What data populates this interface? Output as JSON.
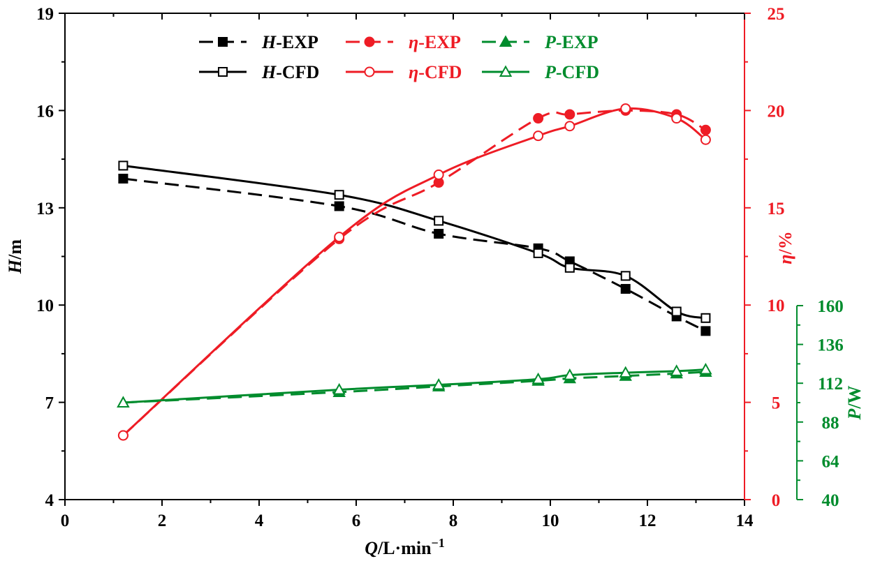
{
  "chart_data": {
    "type": "line",
    "x_axis": {
      "label_var": "Q",
      "label_unit": "/L·min",
      "label_exp": "−1",
      "range": [
        0,
        14
      ],
      "ticks": [
        "0",
        "2",
        "4",
        "6",
        "8",
        "10",
        "12",
        "14"
      ]
    },
    "y_axes": {
      "head": {
        "label_var": "H",
        "label_unit": "/m",
        "range": [
          4,
          19
        ],
        "ticks": [
          "4",
          "7",
          "10",
          "13",
          "16",
          "19"
        ],
        "color": "#000000"
      },
      "efficiency": {
        "label_var": "η",
        "label_unit": "/%",
        "range": [
          0,
          25
        ],
        "ticks": [
          "0",
          "5",
          "10",
          "15",
          "20",
          "25"
        ],
        "color": "#ee1c25"
      },
      "power": {
        "label_var": "P",
        "label_unit": "/W",
        "range": [
          40,
          160
        ],
        "ticks": [
          "40",
          "64",
          "88",
          "112",
          "136",
          "160"
        ],
        "color": "#008c2d"
      }
    },
    "series": [
      {
        "key": "h_exp",
        "prefix": "H",
        "suffix": "-EXP",
        "axis": "head",
        "style": "dashed",
        "marker": "square-filled",
        "color": "#000000",
        "x": [
          1.2,
          5.65,
          7.7,
          9.75,
          10.4,
          11.55,
          12.6,
          13.2
        ],
        "y": [
          13.9,
          13.05,
          12.2,
          11.75,
          11.35,
          10.5,
          9.65,
          9.2
        ]
      },
      {
        "key": "h_cfd",
        "prefix": "H",
        "suffix": "-CFD",
        "axis": "head",
        "style": "solid",
        "marker": "square-open",
        "color": "#000000",
        "x": [
          1.2,
          5.65,
          7.7,
          9.75,
          10.4,
          11.55,
          12.6,
          13.2
        ],
        "y": [
          14.3,
          13.4,
          12.6,
          11.6,
          11.15,
          10.9,
          9.8,
          9.6
        ]
      },
      {
        "key": "eta_exp",
        "prefix": "η",
        "suffix": "-EXP",
        "axis": "efficiency",
        "style": "dashed",
        "marker": "circle-filled",
        "color": "#ee1c25",
        "x": [
          1.2,
          5.65,
          7.7,
          9.75,
          10.4,
          11.55,
          12.6,
          13.2
        ],
        "y": [
          3.3,
          13.4,
          16.3,
          19.6,
          19.8,
          20.0,
          19.8,
          19.0
        ]
      },
      {
        "key": "eta_cfd",
        "prefix": "η",
        "suffix": "-CFD",
        "axis": "efficiency",
        "style": "solid",
        "marker": "circle-open",
        "color": "#ee1c25",
        "x": [
          1.2,
          5.65,
          7.7,
          9.75,
          10.4,
          11.55,
          12.6,
          13.2
        ],
        "y": [
          3.3,
          13.5,
          16.7,
          18.7,
          19.2,
          20.1,
          19.6,
          18.5
        ]
      },
      {
        "key": "p_exp",
        "prefix": "P",
        "suffix": "-EXP",
        "axis": "power",
        "style": "dashed",
        "marker": "triangle-filled",
        "color": "#008c2d",
        "x": [
          1.2,
          5.65,
          7.7,
          9.75,
          10.4,
          11.55,
          12.6,
          13.2
        ],
        "y": [
          100,
          106.5,
          110,
          113.5,
          115,
          116.5,
          118,
          119
        ]
      },
      {
        "key": "p_cfd",
        "prefix": "P",
        "suffix": "-CFD",
        "axis": "power",
        "style": "solid",
        "marker": "triangle-open",
        "color": "#008c2d",
        "x": [
          1.2,
          5.65,
          7.7,
          9.75,
          10.4,
          11.55,
          12.6,
          13.2
        ],
        "y": [
          100,
          108,
          111,
          114.5,
          117,
          118.5,
          119.5,
          120.5
        ]
      }
    ]
  }
}
